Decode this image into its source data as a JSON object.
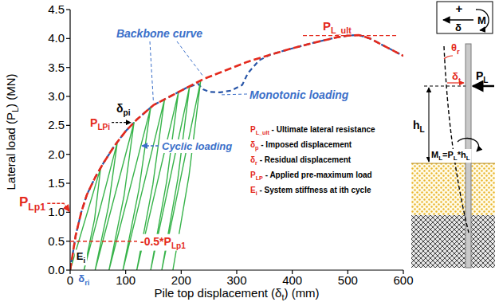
{
  "chart_data": {
    "type": "line",
    "xlabel": [
      "Pile top displacement (δ",
      "t",
      ") (mm)"
    ],
    "ylabel": [
      "Lateral load (P",
      "L",
      ") (MN)"
    ],
    "xlim": [
      0,
      600
    ],
    "ylim": [
      0,
      4.5
    ],
    "xticks": [
      0,
      100,
      200,
      300,
      400,
      500,
      600
    ],
    "yticks": [
      {
        "value": 0,
        "label": "0.0"
      },
      0.5,
      {
        "value": 1,
        "label": "1.0"
      },
      1.5,
      {
        "value": 2,
        "label": "2.0"
      },
      2.5,
      {
        "value": 3,
        "label": "3.0"
      },
      3.5,
      {
        "value": 4,
        "label": "4.0"
      },
      4.5
    ],
    "grid": false,
    "series": [
      {
        "name": "Backbone curve",
        "color": "#e42a1d",
        "line_style": "dashed",
        "x": [
          0,
          5,
          10,
          20,
          30,
          45,
          60,
          80,
          100,
          120,
          150,
          180,
          210,
          240,
          280,
          320,
          360,
          400,
          440,
          480,
          500,
          520,
          540,
          560,
          580,
          600
        ],
        "values": [
          0,
          0.3,
          0.6,
          1.0,
          1.3,
          1.6,
          1.85,
          2.15,
          2.4,
          2.6,
          2.85,
          3.0,
          3.15,
          3.3,
          3.45,
          3.6,
          3.72,
          3.83,
          3.93,
          4.02,
          4.05,
          4.06,
          4.0,
          3.9,
          3.8,
          3.7
        ]
      },
      {
        "name": "Monotonic loading",
        "color": "#2956a8",
        "line_style": "dashed",
        "x": [
          0,
          5,
          10,
          20,
          30,
          45,
          60,
          80,
          100,
          120,
          150,
          180,
          210,
          230,
          240,
          250,
          270,
          290,
          310,
          320,
          340,
          360,
          400,
          440,
          480,
          500,
          520,
          540,
          560,
          580,
          600
        ],
        "values": [
          0,
          0.3,
          0.6,
          1.0,
          1.3,
          1.6,
          1.85,
          2.15,
          2.4,
          2.6,
          2.85,
          3.0,
          3.15,
          3.22,
          3.12,
          3.08,
          3.07,
          3.1,
          3.2,
          3.4,
          3.62,
          3.72,
          3.83,
          3.93,
          4.02,
          4.05,
          4.06,
          4.0,
          3.9,
          3.8,
          3.7
        ]
      },
      {
        "name": "Cyclic loading",
        "color": "#37b34a",
        "line_style": "solid",
        "x": [
          0,
          55,
          44,
          25,
          85,
          69,
          45,
          115,
          97,
          70,
          145,
          124,
          95,
          170,
          149,
          120,
          195,
          174,
          145,
          215,
          194,
          165,
          235,
          214,
          185
        ],
        "values": [
          0,
          1.77,
          0.88,
          0,
          2.21,
          1.1,
          0,
          2.55,
          1.28,
          0,
          2.81,
          1.4,
          0,
          2.95,
          1.48,
          0,
          3.07,
          1.54,
          0,
          3.17,
          1.58,
          0,
          3.27,
          1.63,
          0
        ]
      }
    ],
    "annotations": [
      {
        "text": [
          "P",
          "L_ult"
        ],
        "y": 4.05
      },
      {
        "text": [
          "δ",
          "pi"
        ]
      },
      {
        "text": [
          "P",
          "LPi"
        ]
      },
      {
        "text": [
          "P",
          "Lp1"
        ],
        "y": 1.0
      },
      {
        "text": [
          "-0.5*P",
          "Lp1"
        ],
        "y": 0.5
      },
      {
        "text": [
          "E",
          "i"
        ]
      },
      {
        "text": [
          "δ",
          "ri"
        ]
      }
    ],
    "definitions": [
      [
        "P",
        "L_ult",
        " - Ultimate lateral resistance"
      ],
      [
        "δ",
        "p",
        " - Imposed displacement"
      ],
      [
        "δ",
        "r",
        " - Residual displacement"
      ],
      [
        "P",
        "LP",
        " - Applied pre-maximum load"
      ],
      [
        "E",
        "i",
        " - System stiffness at ith cycle"
      ]
    ]
  },
  "diagram": {
    "sign_plus": "+",
    "sign_disp": "δ",
    "sign_moment": "M",
    "rotation": [
      "θ",
      "r"
    ],
    "displacement": [
      "δ",
      "t"
    ],
    "load": [
      "P",
      "L"
    ],
    "height": [
      "h",
      "L"
    ],
    "moment": [
      "M",
      "L",
      "=P",
      "L",
      "*h",
      "L"
    ]
  }
}
